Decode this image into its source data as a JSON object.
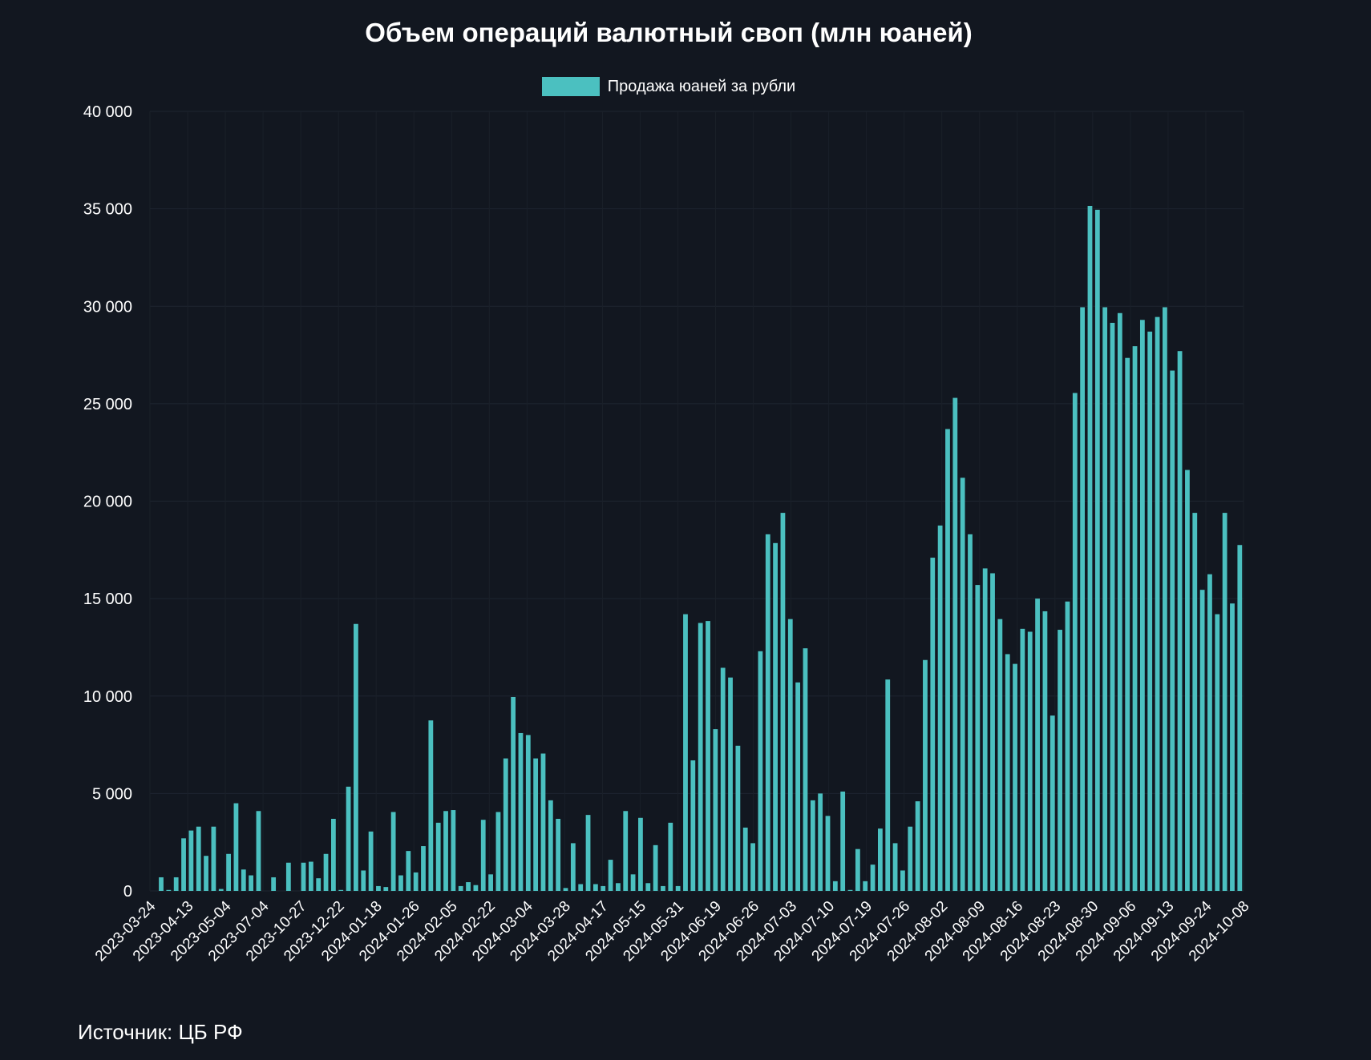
{
  "chart_data": {
    "type": "bar",
    "title": "Объем операций валютный своп (млн юаней)",
    "xlabel": "",
    "ylabel": "",
    "ylim": [
      0,
      40000
    ],
    "y_ticks": [
      "0",
      "5 000",
      "10 000",
      "15 000",
      "20 000",
      "25 000",
      "30 000",
      "35 000",
      "40 000"
    ],
    "y_tick_values": [
      0,
      5000,
      10000,
      15000,
      20000,
      25000,
      30000,
      35000,
      40000
    ],
    "x_tick_labels": [
      "2023-03-24",
      "2023-04-13",
      "2023-05-04",
      "2023-07-04",
      "2023-10-27",
      "2023-12-22",
      "2024-01-18",
      "2024-01-26",
      "2024-02-05",
      "2024-02-22",
      "2024-03-04",
      "2024-03-28",
      "2024-04-17",
      "2024-05-15",
      "2024-05-31",
      "2024-06-19",
      "2024-06-26",
      "2024-07-03",
      "2024-07-10",
      "2024-07-19",
      "2024-07-26",
      "2024-08-02",
      "2024-08-09",
      "2024-08-16",
      "2024-08-23",
      "2024-08-30",
      "2024-09-06",
      "2024-09-13",
      "2024-09-24",
      "2024-10-08"
    ],
    "legend_position": "top-center",
    "grid": true,
    "series": [
      {
        "name": "Продажа юаней за рубли",
        "color": "#4bc0c0",
        "values": [
          0,
          700,
          50,
          700,
          2700,
          3100,
          3300,
          1800,
          3300,
          100,
          1900,
          4500,
          1100,
          800,
          4100,
          0,
          700,
          0,
          1450,
          0,
          1450,
          1500,
          650,
          1900,
          3700,
          50,
          5350,
          13700,
          1050,
          3050,
          250,
          200,
          4050,
          800,
          2050,
          950,
          2300,
          8750,
          3500,
          4100,
          4150,
          250,
          450,
          300,
          3650,
          850,
          4050,
          6800,
          9950,
          8100,
          8000,
          6800,
          7050,
          4650,
          3700,
          150,
          2450,
          350,
          3900,
          350,
          250,
          1600,
          400,
          4100,
          850,
          3750,
          400,
          2350,
          250,
          3500,
          250,
          14200,
          6700,
          13750,
          13850,
          8300,
          11450,
          10950,
          7450,
          3250,
          2450,
          12300,
          18300,
          17850,
          19400,
          13950,
          10700,
          12450,
          4650,
          5000,
          3850,
          500,
          5100,
          50,
          2150,
          500,
          1350,
          3200,
          10850,
          2450,
          1050,
          3300,
          4600,
          11850,
          17100,
          18750,
          23700,
          25300,
          21200,
          18300,
          15700,
          16550,
          16300,
          13950,
          12150,
          11650,
          13450,
          13300,
          15000,
          14350,
          9000,
          13400,
          14850,
          25550,
          29950,
          35150,
          34950,
          29950,
          29150,
          29650,
          27350,
          27950,
          29300,
          28700,
          29450,
          29950,
          26700,
          27700,
          21600,
          19400,
          15450,
          16250,
          14200,
          19400,
          14750,
          17750
        ]
      }
    ]
  },
  "source_text": "Источник: ЦБ РФ"
}
